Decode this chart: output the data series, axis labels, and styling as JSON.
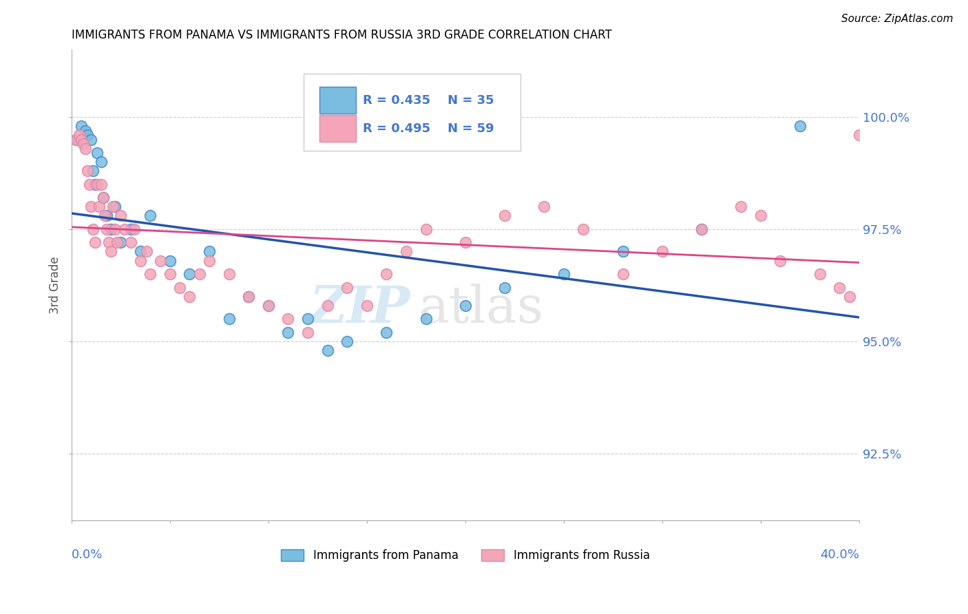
{
  "title": "IMMIGRANTS FROM PANAMA VS IMMIGRANTS FROM RUSSIA 3RD GRADE CORRELATION CHART",
  "source": "Source: ZipAtlas.com",
  "ylabel": "3rd Grade",
  "ylabel_values": [
    92.5,
    95.0,
    97.5,
    100.0
  ],
  "xlim": [
    0.0,
    40.0
  ],
  "ylim": [
    91.0,
    101.5
  ],
  "watermark_zip": "ZIP",
  "watermark_atlas": "atlas",
  "legend_blue": {
    "R": 0.435,
    "N": 35,
    "label": "Immigrants from Panama"
  },
  "legend_pink": {
    "R": 0.495,
    "N": 59,
    "label": "Immigrants from Russia"
  },
  "blue_color": "#7abde0",
  "pink_color": "#f4a6b8",
  "blue_edge_color": "#4488cc",
  "pink_edge_color": "#dd88aa",
  "blue_line_color": "#2255aa",
  "pink_line_color": "#dd4488",
  "grid_color": "#cccccc",
  "tick_label_color": "#4477cc",
  "panama_x": [
    0.3,
    0.5,
    0.7,
    0.8,
    1.0,
    1.1,
    1.2,
    1.3,
    1.5,
    1.6,
    1.8,
    2.0,
    2.2,
    2.5,
    3.0,
    3.5,
    4.0,
    5.0,
    6.0,
    7.0,
    8.0,
    9.0,
    10.0,
    11.0,
    12.0,
    13.0,
    14.0,
    16.0,
    18.0,
    20.0,
    22.0,
    25.0,
    28.0,
    32.0,
    37.0
  ],
  "panama_y": [
    99.5,
    99.8,
    99.7,
    99.6,
    99.5,
    98.8,
    98.5,
    99.2,
    99.0,
    98.2,
    97.8,
    97.5,
    98.0,
    97.2,
    97.5,
    97.0,
    97.8,
    96.8,
    96.5,
    97.0,
    95.5,
    96.0,
    95.8,
    95.2,
    95.5,
    94.8,
    95.0,
    95.2,
    95.5,
    95.8,
    96.2,
    96.5,
    97.0,
    97.5,
    99.8
  ],
  "russia_x": [
    0.2,
    0.4,
    0.5,
    0.6,
    0.7,
    0.8,
    0.9,
    1.0,
    1.1,
    1.2,
    1.3,
    1.4,
    1.5,
    1.6,
    1.7,
    1.8,
    1.9,
    2.0,
    2.1,
    2.2,
    2.3,
    2.5,
    2.7,
    3.0,
    3.2,
    3.5,
    3.8,
    4.0,
    4.5,
    5.0,
    5.5,
    6.0,
    6.5,
    7.0,
    8.0,
    9.0,
    10.0,
    11.0,
    12.0,
    13.0,
    14.0,
    15.0,
    16.0,
    17.0,
    18.0,
    20.0,
    22.0,
    24.0,
    26.0,
    28.0,
    30.0,
    32.0,
    34.0,
    36.0,
    38.0,
    39.0,
    39.5,
    40.0,
    35.0
  ],
  "russia_y": [
    99.5,
    99.6,
    99.5,
    99.4,
    99.3,
    98.8,
    98.5,
    98.0,
    97.5,
    97.2,
    98.5,
    98.0,
    98.5,
    98.2,
    97.8,
    97.5,
    97.2,
    97.0,
    98.0,
    97.5,
    97.2,
    97.8,
    97.5,
    97.2,
    97.5,
    96.8,
    97.0,
    96.5,
    96.8,
    96.5,
    96.2,
    96.0,
    96.5,
    96.8,
    96.5,
    96.0,
    95.8,
    95.5,
    95.2,
    95.8,
    96.2,
    95.8,
    96.5,
    97.0,
    97.5,
    97.2,
    97.8,
    98.0,
    97.5,
    96.5,
    97.0,
    97.5,
    98.0,
    96.8,
    96.5,
    96.2,
    96.0,
    99.6,
    97.8
  ]
}
